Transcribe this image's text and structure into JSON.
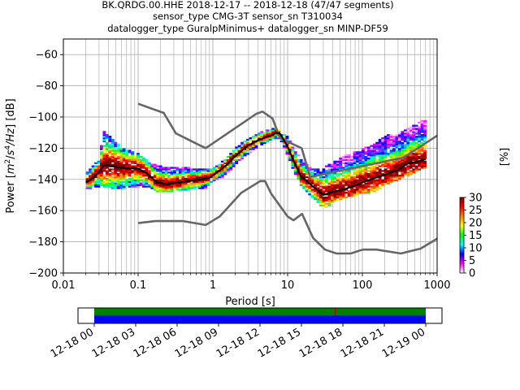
{
  "chart_data": {
    "type": "heatmap",
    "title_lines": [
      "BK.QRDG.00.HHE   2018-12-17 -- 2018-12-18  (47/47 segments)",
      "sensor_type CMG-3T sensor_sn T310034",
      "datalogger_type GuralpMinimus+ datalogger_sn MINP-DF59"
    ],
    "xlabel": "Period [s]",
    "ylabel_parts": [
      "Power [",
      "m",
      "2",
      "/",
      "s",
      "4",
      "/Hz",
      "] [dB]"
    ],
    "x_scale": "log",
    "xlim": [
      0.01,
      1000
    ],
    "ylim": [
      -200,
      -50
    ],
    "x_ticks": [
      0.01,
      0.1,
      1,
      10,
      100,
      1000
    ],
    "x_tick_labels": [
      "0.01",
      "0.1",
      "1",
      "10",
      "100",
      "1000"
    ],
    "y_ticks": [
      -200,
      -180,
      -160,
      -140,
      -120,
      -100,
      -80,
      -60
    ],
    "y_tick_labels": [
      "−200",
      "−180",
      "−160",
      "−140",
      "−120",
      "−100",
      "−80",
      "−60"
    ],
    "grid": true,
    "colorbar": {
      "label": "[%]",
      "range": [
        0,
        30
      ],
      "ticks": [
        0,
        5,
        10,
        15,
        20,
        25,
        30
      ],
      "tick_labels": [
        "0",
        "5",
        "10",
        "15",
        "20",
        "25",
        "30"
      ],
      "colormap": [
        "#ffffff",
        "#ff00ff",
        "#0000ff",
        "#00ffff",
        "#00ff00",
        "#ffff00",
        "#ff8000",
        "#ff0000",
        "#800000"
      ]
    },
    "high_noise_model": {
      "name": "NHNM",
      "color": "#666666",
      "x": [
        0.1,
        0.22,
        0.32,
        0.8,
        3.8,
        4.6,
        6.3,
        7.9,
        15.4,
        20,
        354.8,
        1000
      ],
      "y": [
        -91.5,
        -97.4,
        -110.5,
        -120,
        -98,
        -96.5,
        -101,
        -113.5,
        -120,
        -138.5,
        -126,
        -112
      ]
    },
    "low_noise_model": {
      "name": "NLNM",
      "color": "#666666",
      "x": [
        0.1,
        0.17,
        0.4,
        0.8,
        1.24,
        2.4,
        4.3,
        5,
        6,
        10,
        12,
        15.6,
        21.9,
        31.6,
        45,
        70,
        101,
        154,
        328,
        600,
        1000
      ],
      "y": [
        -168,
        -166.7,
        -166.7,
        -169.2,
        -163.7,
        -148.6,
        -141.1,
        -141.1,
        -149,
        -163.8,
        -166.2,
        -162.1,
        -177.5,
        -185,
        -187.5,
        -187.5,
        -185,
        -185,
        -187.5,
        -184.4,
        -178
      ]
    },
    "mode_curve": {
      "name": "mode",
      "color": "#000000",
      "x": [
        0.02,
        0.025,
        0.03,
        0.035,
        0.04,
        0.05,
        0.07,
        0.1,
        0.13,
        0.18,
        0.25,
        0.35,
        0.5,
        0.7,
        0.9,
        1.1,
        1.5,
        2,
        3,
        4,
        5,
        6,
        7,
        8,
        10,
        12,
        15,
        20,
        30,
        40,
        60,
        80,
        100,
        150,
        200,
        300,
        400,
        600,
        700
      ],
      "y": [
        -142,
        -139,
        -135,
        -131,
        -131,
        -132,
        -133,
        -133,
        -136,
        -142,
        -143,
        -142,
        -141,
        -140,
        -139,
        -136,
        -131,
        -125,
        -118,
        -115,
        -113,
        -112,
        -110,
        -111,
        -119,
        -128,
        -138,
        -143,
        -150,
        -148,
        -146,
        -144,
        -142,
        -139,
        -137,
        -134,
        -130,
        -128,
        -127
      ]
    },
    "histogram_band": {
      "x": [
        0.02,
        0.03,
        0.035,
        0.05,
        0.07,
        0.1,
        0.15,
        0.2,
        0.3,
        0.5,
        0.8,
        1,
        1.5,
        2,
        3,
        4,
        5,
        6,
        7,
        8,
        10,
        12,
        15,
        20,
        30,
        40,
        60,
        100,
        150,
        200,
        300,
        500,
        700
      ],
      "upper": [
        -138,
        -128,
        -110,
        -118,
        -122,
        -125,
        -131,
        -133,
        -133,
        -134,
        -135,
        -134,
        -128,
        -121,
        -115,
        -112,
        -110,
        -109,
        -108,
        -110,
        -114,
        -122,
        -128,
        -134,
        -134,
        -130,
        -126,
        -122,
        -118,
        -113,
        -112,
        -106,
        -103
      ],
      "lower": [
        -146,
        -144,
        -144,
        -146,
        -145,
        -144,
        -145,
        -148,
        -147,
        -146,
        -145,
        -141,
        -137,
        -130,
        -123,
        -119,
        -116,
        -114,
        -113,
        -114,
        -124,
        -134,
        -143,
        -150,
        -158,
        -155,
        -152,
        -149,
        -147,
        -143,
        -140,
        -135,
        -132
      ]
    },
    "timeline": {
      "start": "12-18 00",
      "end": "12-19 00",
      "tick_labels": [
        "12-18 00",
        "12-18 03",
        "12-18 06",
        "12-18 09",
        "12-18 12",
        "12-18 15",
        "12-18 18",
        "12-18 21",
        "12-19 00"
      ],
      "tick_hours": [
        0,
        3,
        6,
        9,
        12,
        15,
        18,
        21,
        24
      ],
      "data_span_hours": [
        0,
        24
      ],
      "rows": [
        {
          "name": "coverage",
          "color": "#008000"
        },
        {
          "name": "segments",
          "color": "#0000ff"
        }
      ],
      "marker": {
        "hour": 17.4,
        "color": "#c00000"
      }
    }
  }
}
